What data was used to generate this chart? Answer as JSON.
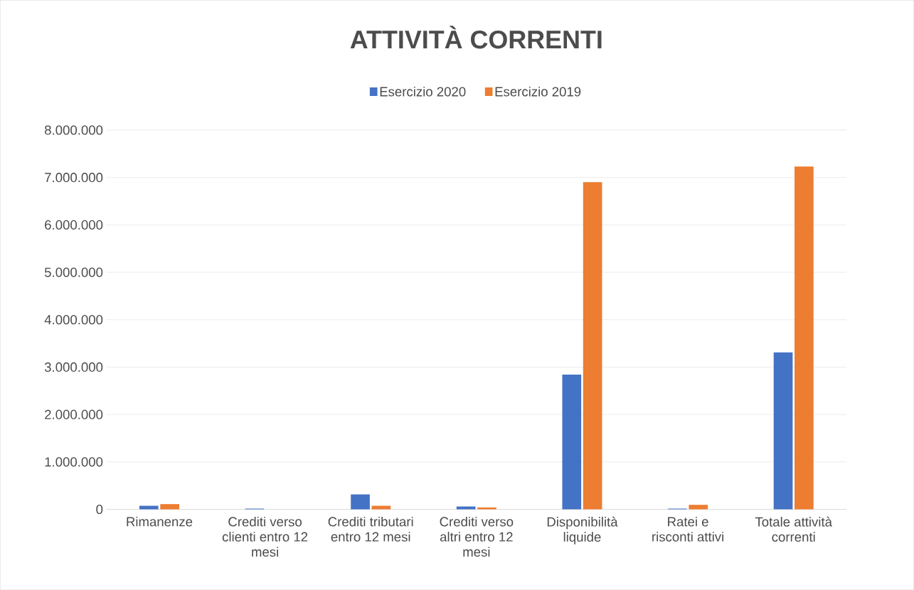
{
  "chart_data": {
    "type": "bar",
    "title": "ATTIVITÀ CORRENTI",
    "categories": [
      "Rimanenze",
      "Crediti verso clienti entro 12 mesi",
      "Crediti tributari entro 12 mesi",
      "Crediti verso altri entro 12 mesi",
      "Disponibilità liquide",
      "Ratei e risconti attivi",
      "Totale attività correnti"
    ],
    "series": [
      {
        "name": "Esercizio 2020",
        "color": "#4472c4",
        "values": [
          75000,
          15000,
          315000,
          60000,
          2840000,
          15000,
          3310000
        ]
      },
      {
        "name": "Esercizio 2019",
        "color": "#ed7d31",
        "values": [
          110000,
          0,
          75000,
          40000,
          6900000,
          95000,
          7230000
        ]
      }
    ],
    "ylim": [
      0,
      8000000
    ],
    "yticks": [
      {
        "value": 0,
        "label": "0"
      },
      {
        "value": 1000000,
        "label": "1.000.000"
      },
      {
        "value": 2000000,
        "label": "2.000.000"
      },
      {
        "value": 3000000,
        "label": "3.000.000"
      },
      {
        "value": 4000000,
        "label": "4.000.000"
      },
      {
        "value": 5000000,
        "label": "5.000.000"
      },
      {
        "value": 6000000,
        "label": "6.000.000"
      },
      {
        "value": 7000000,
        "label": "7.000.000"
      },
      {
        "value": 8000000,
        "label": "8.000.000"
      }
    ],
    "grid": "y",
    "legend": "top"
  }
}
